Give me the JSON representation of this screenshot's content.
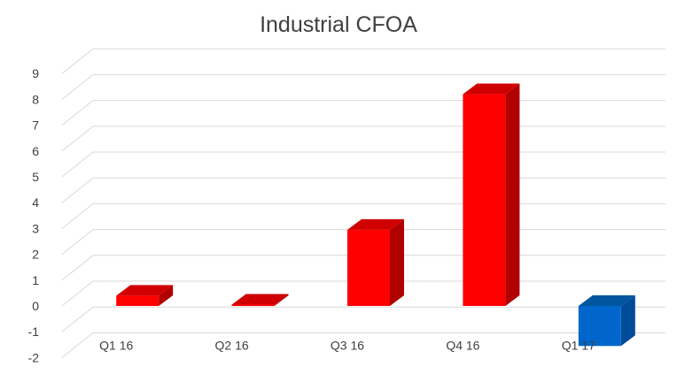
{
  "chart_data": {
    "type": "bar",
    "title": "Industrial CFOA",
    "xlabel": "",
    "ylabel": "",
    "categories": [
      "Q1 16",
      "Q2 16",
      "Q3 16",
      "Q4 16",
      "Q1 17"
    ],
    "values": [
      0.4,
      0.05,
      2.95,
      8.2,
      -1.55
    ],
    "yticks": [
      "9",
      "8",
      "7",
      "6",
      "5",
      "4",
      "3",
      "2",
      "1",
      "0",
      "-1",
      "-2"
    ],
    "ylim": [
      -2,
      9
    ],
    "grid": true,
    "legend": "none",
    "bar_colors": [
      "#ff0000",
      "#ff0000",
      "#ff0000",
      "#ff0000",
      "#0066cc"
    ],
    "bar_side_colors": [
      "#b00000",
      "#b00000",
      "#b00000",
      "#b00000",
      "#004c99"
    ],
    "bar_top_colors": [
      "#d00000",
      "#d00000",
      "#d00000",
      "#d00000",
      "#00569f"
    ]
  }
}
